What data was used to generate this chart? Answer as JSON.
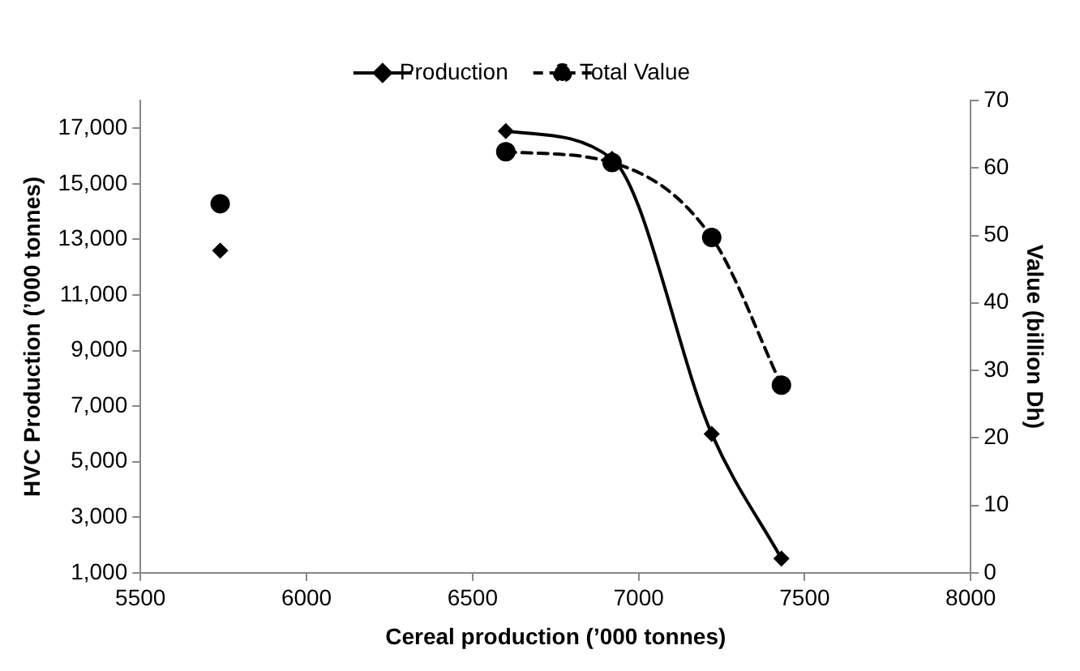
{
  "chart_data": {
    "type": "line",
    "xlabel": "Cereal production (’000 tonnes)",
    "ylabel": "HVC Production (’000 tonnes)",
    "y2label": "Value (billion Dh)",
    "xlim": [
      5500,
      8000
    ],
    "xticks": [
      5500,
      6000,
      6500,
      7000,
      7500,
      8000
    ],
    "ylim": [
      1000,
      18000
    ],
    "yticks": [
      {
        "value": 1000,
        "label": "1,000"
      },
      {
        "value": 3000,
        "label": "3,000"
      },
      {
        "value": 5000,
        "label": "5,000"
      },
      {
        "value": 7000,
        "label": "7,000"
      },
      {
        "value": 9000,
        "label": "9,000"
      },
      {
        "value": 11000,
        "label": "11,000"
      },
      {
        "value": 13000,
        "label": "13,000"
      },
      {
        "value": 15000,
        "label": "15,000"
      },
      {
        "value": 17000,
        "label": "17,000"
      }
    ],
    "y2lim": [
      0,
      70
    ],
    "y2ticks": [
      0,
      10,
      20,
      30,
      40,
      50,
      60,
      70
    ],
    "grid": false,
    "legend": "top",
    "series": [
      {
        "name": "Production",
        "type": "line",
        "color": "#000000",
        "marker": "diamond",
        "line_style": "solid",
        "axis": "y",
        "x": [
          6600,
          6920,
          7220,
          7430
        ],
        "values": [
          16900,
          15900,
          6000,
          1510
        ]
      },
      {
        "name": "Total Value",
        "type": "line",
        "color": "#000000",
        "marker": "circle",
        "line_style": "dashed",
        "axis": "y2",
        "x": [
          6600,
          6920,
          7220,
          7430
        ],
        "values": [
          62.4,
          60.8,
          49.7,
          27.8
        ]
      },
      {
        "type": "scatter",
        "color": "#000000",
        "marker": "diamond",
        "axis": "y",
        "x": [
          5740
        ],
        "values": [
          12600
        ]
      },
      {
        "type": "scatter",
        "color": "#000000",
        "marker": "circle",
        "axis": "y2",
        "x": [
          5740
        ],
        "values": [
          54.7
        ]
      }
    ]
  }
}
